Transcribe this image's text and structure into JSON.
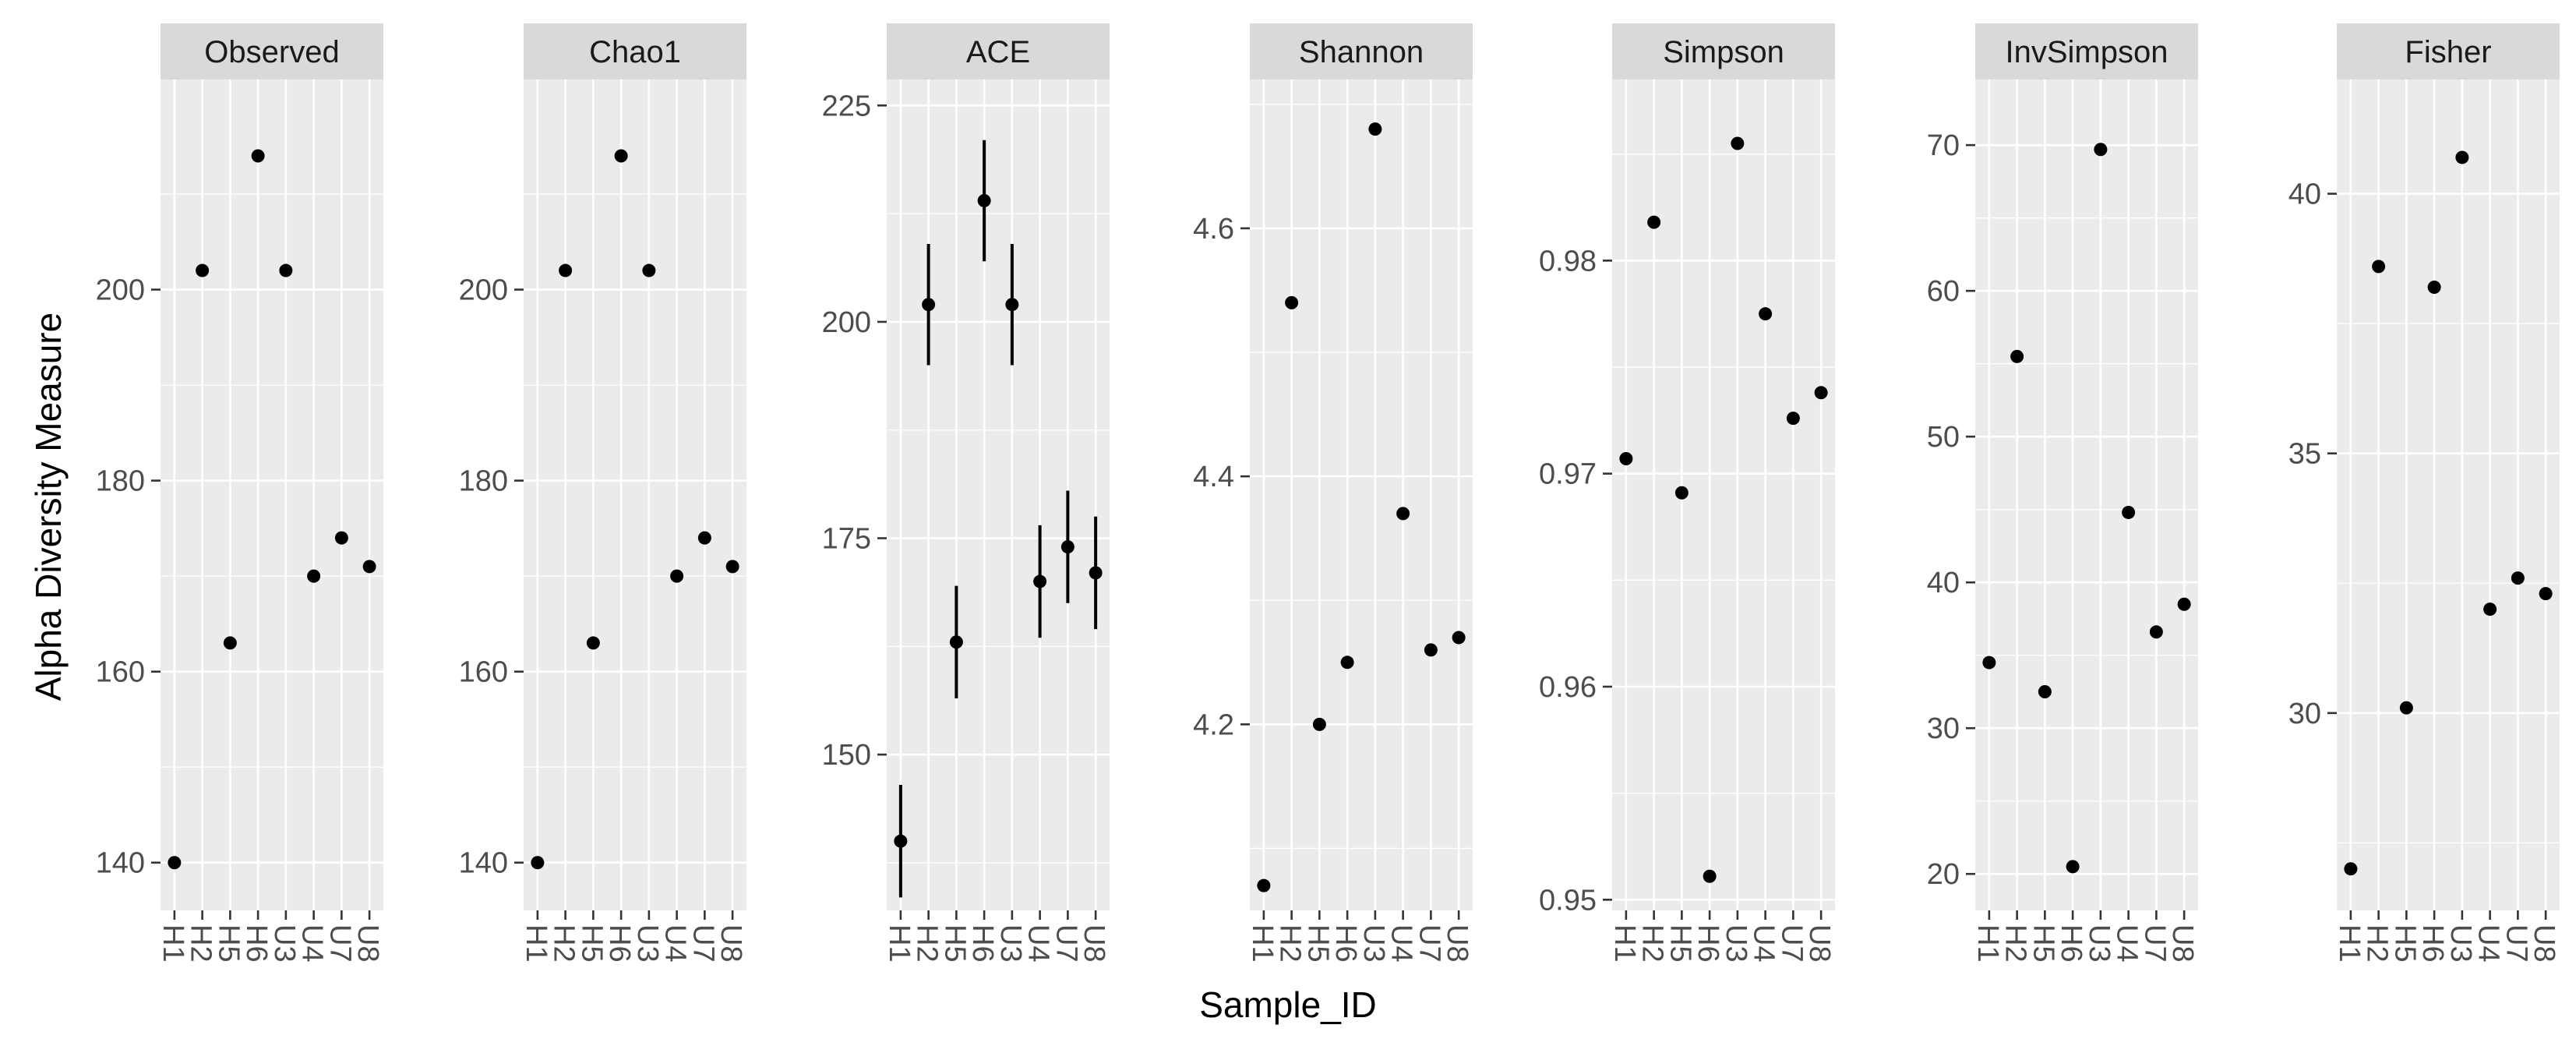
{
  "chart_data": {
    "type": "scatter",
    "facet_by": "measure",
    "xlabel": "Sample_ID",
    "ylabel": "Alpha Diversity Measure",
    "categories": [
      "H1",
      "H2",
      "H5",
      "H6",
      "U3",
      "U4",
      "U7",
      "U8"
    ],
    "panels": [
      {
        "name": "Observed",
        "ylim": [
          135,
          222
        ],
        "yticks": [
          140,
          160,
          180,
          200
        ],
        "yticklabels": [
          "140",
          "160",
          "180",
          "200"
        ],
        "values": [
          140,
          202,
          163,
          214,
          202,
          170,
          174,
          171
        ]
      },
      {
        "name": "Chao1",
        "ylim": [
          135,
          222
        ],
        "yticks": [
          140,
          160,
          180,
          200
        ],
        "yticklabels": [
          "140",
          "160",
          "180",
          "200"
        ],
        "values": [
          140,
          202,
          163,
          214,
          202,
          170,
          174,
          171
        ]
      },
      {
        "name": "ACE",
        "ylim": [
          132,
          228
        ],
        "yticks": [
          150,
          175,
          200,
          225
        ],
        "yticklabels": [
          "150",
          "175",
          "200",
          "225"
        ],
        "values": [
          140,
          202,
          163,
          214,
          202,
          170,
          174,
          171
        ],
        "errors": [
          6.5,
          7,
          6.5,
          7,
          7,
          6.5,
          6.5,
          6.5
        ]
      },
      {
        "name": "Shannon",
        "ylim": [
          4.05,
          4.72
        ],
        "yticks": [
          4.2,
          4.4,
          4.6
        ],
        "yticklabels": [
          "4.2",
          "4.4",
          "4.6"
        ],
        "values": [
          4.07,
          4.54,
          4.2,
          4.25,
          4.68,
          4.37,
          4.26,
          4.27
        ]
      },
      {
        "name": "Simpson",
        "ylim": [
          0.9495,
          0.9885
        ],
        "yticks": [
          0.95,
          0.96,
          0.97,
          0.98
        ],
        "yticklabels": [
          "0.95",
          "0.96",
          "0.97",
          "0.98"
        ],
        "values": [
          0.9707,
          0.9818,
          0.9691,
          0.9511,
          0.9855,
          0.9775,
          0.9726,
          0.9738
        ]
      },
      {
        "name": "InvSimpson",
        "ylim": [
          17.5,
          74.5
        ],
        "yticks": [
          20,
          30,
          40,
          50,
          60,
          70
        ],
        "yticklabels": [
          "20",
          "30",
          "40",
          "50",
          "60",
          "70"
        ],
        "values": [
          34.5,
          55.5,
          32.5,
          20.5,
          69.7,
          44.8,
          36.6,
          38.5
        ]
      },
      {
        "name": "Fisher",
        "ylim": [
          26.2,
          42.2
        ],
        "yticks": [
          30,
          35,
          40
        ],
        "yticklabels": [
          "30",
          "35",
          "40"
        ],
        "values": [
          27.0,
          38.6,
          30.1,
          38.2,
          40.7,
          32.0,
          32.6,
          32.3
        ]
      }
    ]
  }
}
